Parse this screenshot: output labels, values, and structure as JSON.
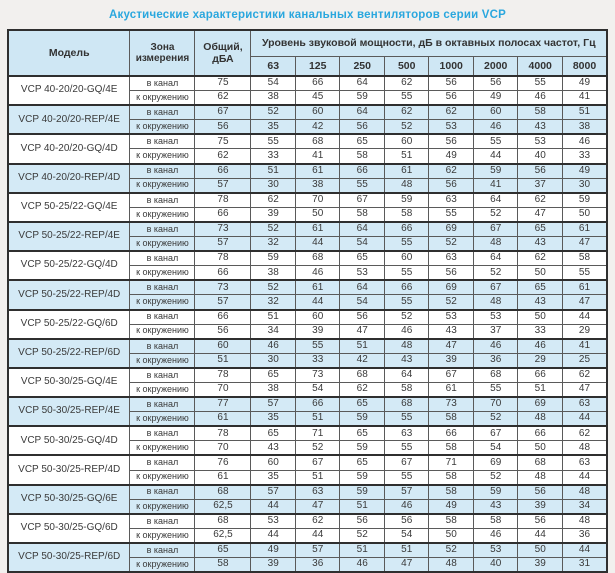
{
  "title": "Акустические характеристики канальных вентиляторов серии VCP",
  "colors": {
    "page_bg": "#f2f0ee",
    "title_text": "#2aa7de",
    "header_bg": "#cfe7f4",
    "shaded_row_bg": "#d4eaf6",
    "cell_bg": "#ffffff",
    "text": "#3a3a3a",
    "border_dark": "#2f2f2f",
    "border_mid": "#5a5a5a",
    "border_light": "#9aa0a4"
  },
  "table": {
    "headers": {
      "model": "Модель",
      "zone": "Зона измерения",
      "total": "Общий, дБА",
      "spl_group": "Уровень звуковой мощности, дБ в октавных полосах частот, Гц",
      "frequencies": [
        "63",
        "125",
        "250",
        "500",
        "1000",
        "2000",
        "4000",
        "8000"
      ]
    },
    "zone_labels": [
      "в канал",
      "к окружению"
    ],
    "rows": [
      {
        "model": "VCP 40-20/20-GQ/4E",
        "shaded": false,
        "duct": {
          "total": "75",
          "bands": [
            54,
            66,
            64,
            62,
            56,
            56,
            55,
            49
          ]
        },
        "ambient": {
          "total": "62",
          "bands": [
            38,
            45,
            59,
            55,
            56,
            49,
            46,
            41
          ]
        }
      },
      {
        "model": "VCP 40-20/20-REP/4E",
        "shaded": true,
        "duct": {
          "total": "67",
          "bands": [
            52,
            60,
            64,
            62,
            62,
            60,
            58,
            51
          ]
        },
        "ambient": {
          "total": "56",
          "bands": [
            35,
            42,
            56,
            52,
            53,
            46,
            43,
            38
          ]
        }
      },
      {
        "model": "VCP 40-20/20-GQ/4D",
        "shaded": false,
        "duct": {
          "total": "75",
          "bands": [
            55,
            68,
            65,
            60,
            56,
            55,
            53,
            46
          ]
        },
        "ambient": {
          "total": "62",
          "bands": [
            33,
            41,
            58,
            51,
            49,
            44,
            40,
            33
          ]
        }
      },
      {
        "model": "VCP 40-20/20-REP/4D",
        "shaded": true,
        "duct": {
          "total": "66",
          "bands": [
            51,
            61,
            66,
            61,
            62,
            59,
            56,
            49
          ]
        },
        "ambient": {
          "total": "57",
          "bands": [
            30,
            38,
            55,
            48,
            56,
            41,
            37,
            30
          ]
        }
      },
      {
        "model": "VCP 50-25/22-GQ/4E",
        "shaded": false,
        "duct": {
          "total": "78",
          "bands": [
            62,
            70,
            67,
            59,
            63,
            64,
            62,
            59
          ]
        },
        "ambient": {
          "total": "66",
          "bands": [
            39,
            50,
            58,
            58,
            55,
            52,
            47,
            50
          ]
        }
      },
      {
        "model": "VCP 50-25/22-REP/4E",
        "shaded": true,
        "duct": {
          "total": "73",
          "bands": [
            52,
            61,
            64,
            66,
            69,
            67,
            65,
            61
          ]
        },
        "ambient": {
          "total": "57",
          "bands": [
            32,
            44,
            54,
            55,
            52,
            48,
            43,
            47
          ]
        }
      },
      {
        "model": "VCP 50-25/22-GQ/4D",
        "shaded": false,
        "duct": {
          "total": "78",
          "bands": [
            59,
            68,
            65,
            60,
            63,
            64,
            62,
            58
          ]
        },
        "ambient": {
          "total": "66",
          "bands": [
            38,
            46,
            53,
            55,
            56,
            52,
            50,
            55
          ]
        }
      },
      {
        "model": "VCP 50-25/22-REP/4D",
        "shaded": true,
        "duct": {
          "total": "73",
          "bands": [
            52,
            61,
            64,
            66,
            69,
            67,
            65,
            61
          ]
        },
        "ambient": {
          "total": "57",
          "bands": [
            32,
            44,
            54,
            55,
            52,
            48,
            43,
            47
          ]
        }
      },
      {
        "model": "VCP 50-25/22-GQ/6D",
        "shaded": false,
        "duct": {
          "total": "66",
          "bands": [
            51,
            60,
            56,
            52,
            53,
            53,
            50,
            44
          ]
        },
        "ambient": {
          "total": "56",
          "bands": [
            34,
            39,
            47,
            46,
            43,
            37,
            33,
            29
          ]
        }
      },
      {
        "model": "VCP 50-25/22-REP/6D",
        "shaded": true,
        "duct": {
          "total": "60",
          "bands": [
            46,
            55,
            51,
            48,
            47,
            46,
            46,
            41
          ]
        },
        "ambient": {
          "total": "51",
          "bands": [
            30,
            33,
            42,
            43,
            39,
            36,
            29,
            25
          ]
        }
      },
      {
        "model": "VCP 50-30/25-GQ/4E",
        "shaded": false,
        "duct": {
          "total": "78",
          "bands": [
            65,
            73,
            68,
            64,
            67,
            68,
            66,
            62
          ]
        },
        "ambient": {
          "total": "70",
          "bands": [
            38,
            54,
            62,
            58,
            61,
            55,
            51,
            47
          ]
        }
      },
      {
        "model": "VCP 50-30/25-REP/4E",
        "shaded": true,
        "duct": {
          "total": "77",
          "bands": [
            57,
            66,
            65,
            68,
            73,
            70,
            69,
            63
          ]
        },
        "ambient": {
          "total": "61",
          "bands": [
            35,
            51,
            59,
            55,
            58,
            52,
            48,
            44
          ]
        }
      },
      {
        "model": "VCP 50-30/25-GQ/4D",
        "shaded": false,
        "duct": {
          "total": "78",
          "bands": [
            65,
            71,
            65,
            63,
            66,
            67,
            66,
            62
          ]
        },
        "ambient": {
          "total": "70",
          "bands": [
            43,
            52,
            59,
            55,
            58,
            54,
            50,
            48
          ]
        }
      },
      {
        "model": "VCP 50-30/25-REP/4D",
        "shaded": false,
        "duct": {
          "total": "76",
          "bands": [
            60,
            67,
            65,
            67,
            71,
            69,
            68,
            63
          ]
        },
        "ambient": {
          "total": "61",
          "bands": [
            35,
            51,
            59,
            55,
            58,
            52,
            48,
            44
          ]
        }
      },
      {
        "model": "VCP 50-30/25-GQ/6E",
        "shaded": true,
        "duct": {
          "total": "68",
          "bands": [
            57,
            63,
            59,
            57,
            58,
            59,
            56,
            48
          ]
        },
        "ambient": {
          "total": "62,5",
          "bands": [
            44,
            47,
            51,
            46,
            49,
            43,
            39,
            34
          ]
        }
      },
      {
        "model": "VCP 50-30/25-GQ/6D",
        "shaded": false,
        "duct": {
          "total": "68",
          "bands": [
            53,
            62,
            56,
            56,
            58,
            58,
            56,
            48
          ]
        },
        "ambient": {
          "total": "62,5",
          "bands": [
            44,
            44,
            52,
            54,
            50,
            46,
            44,
            36
          ]
        }
      },
      {
        "model": "VCP 50-30/25-REP/6D",
        "shaded": true,
        "duct": {
          "total": "65",
          "bands": [
            49,
            57,
            51,
            51,
            52,
            53,
            50,
            44
          ]
        },
        "ambient": {
          "total": "58",
          "bands": [
            39,
            36,
            46,
            47,
            48,
            40,
            39,
            31
          ]
        }
      }
    ]
  }
}
